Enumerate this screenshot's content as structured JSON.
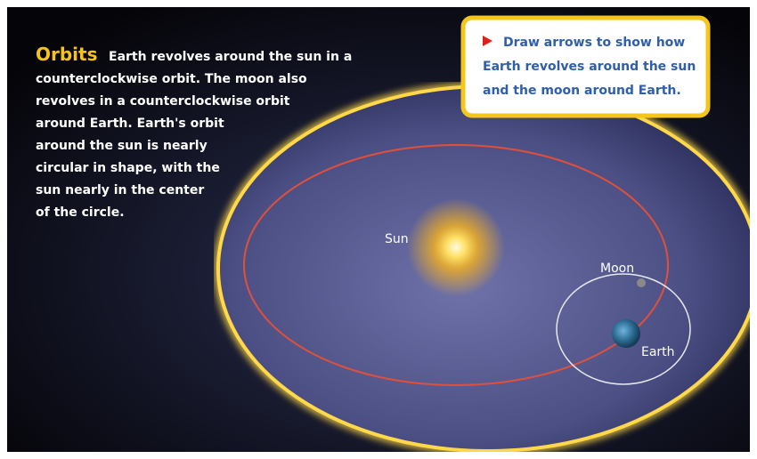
{
  "heading": "Orbits",
  "body_lines": [
    "Earth revolves around the sun in a",
    "counterclockwise orbit. The moon also",
    "revolves in a counterclockwise orbit",
    "around Earth. Earth's orbit",
    "around the sun is nearly",
    "circular in shape, with the",
    "sun nearly in the center",
    "of the circle."
  ],
  "callout_lines": [
    "Draw arrows to show how",
    "Earth revolves around the sun",
    "and the moon around Earth."
  ],
  "labels": {
    "sun": "Sun",
    "moon": "Moon",
    "earth": "Earth"
  }
}
